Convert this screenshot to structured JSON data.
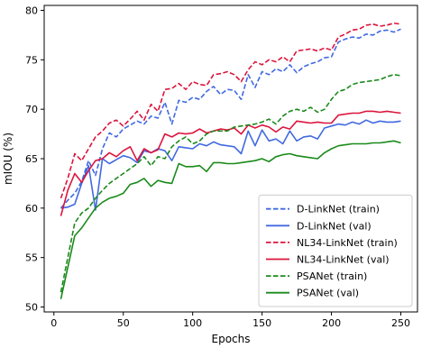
{
  "chart_data": {
    "type": "line",
    "xlabel": "Epochs",
    "ylabel": "mIOU (%)",
    "xlim": [
      -7,
      262
    ],
    "ylim": [
      49.5,
      80.5
    ],
    "xticks": [
      0,
      50,
      100,
      150,
      200,
      250
    ],
    "yticks": [
      50,
      55,
      60,
      65,
      70,
      75,
      80
    ],
    "grid": false,
    "legend_position": "lower-right",
    "x": [
      5,
      10,
      15,
      20,
      25,
      30,
      35,
      40,
      45,
      50,
      55,
      60,
      65,
      70,
      75,
      80,
      85,
      90,
      95,
      100,
      105,
      110,
      115,
      120,
      125,
      130,
      135,
      140,
      145,
      150,
      155,
      160,
      165,
      170,
      175,
      180,
      185,
      190,
      195,
      200,
      205,
      210,
      215,
      220,
      225,
      230,
      235,
      240,
      245,
      250
    ],
    "series": [
      {
        "name": "D-LinkNet (train)",
        "color": "#4169e1",
        "dash": true,
        "values": [
          60.0,
          60.8,
          61.5,
          62.7,
          64.8,
          63.3,
          66.0,
          67.6,
          67.2,
          68.0,
          68.4,
          68.8,
          68.5,
          69.3,
          69.1,
          70.7,
          68.5,
          70.9,
          70.7,
          71.2,
          71.0,
          71.8,
          72.3,
          71.5,
          72.0,
          71.9,
          71.0,
          73.5,
          72.2,
          73.8,
          73.5,
          74.1,
          73.8,
          74.5,
          73.7,
          74.3,
          74.6,
          74.8,
          75.2,
          75.3,
          76.8,
          77.1,
          77.3,
          77.2,
          77.6,
          77.5,
          77.9,
          78.0,
          77.8,
          78.1
        ]
      },
      {
        "name": "D-LinkNet (val)",
        "color": "#4169e1",
        "dash": false,
        "values": [
          60.0,
          60.1,
          60.4,
          62.5,
          64.3,
          59.8,
          65.0,
          64.5,
          64.9,
          65.3,
          65.1,
          64.6,
          65.8,
          65.6,
          66.0,
          65.8,
          64.8,
          66.2,
          66.1,
          66.0,
          66.5,
          66.3,
          66.7,
          66.4,
          66.3,
          66.2,
          65.5,
          67.8,
          66.3,
          67.9,
          66.8,
          67.0,
          66.5,
          67.8,
          66.8,
          67.2,
          67.3,
          67.0,
          68.1,
          68.3,
          68.5,
          68.4,
          68.7,
          68.5,
          68.9,
          68.6,
          68.8,
          68.7,
          68.7,
          68.8
        ]
      },
      {
        "name": "NL34-LinkNet (train)",
        "color": "#dc143c",
        "dash": true,
        "values": [
          61.0,
          63.0,
          65.5,
          64.8,
          66.0,
          67.2,
          67.8,
          68.6,
          68.9,
          68.3,
          69.0,
          69.8,
          68.9,
          70.5,
          69.8,
          72.0,
          72.1,
          72.6,
          72.0,
          72.8,
          72.5,
          72.4,
          73.5,
          73.6,
          73.8,
          73.5,
          72.8,
          74.0,
          74.8,
          74.5,
          75.0,
          74.8,
          75.3,
          74.8,
          75.9,
          76.0,
          76.1,
          75.9,
          76.2,
          76.0,
          77.3,
          77.6,
          78.0,
          78.1,
          78.5,
          78.6,
          78.4,
          78.5,
          78.7,
          78.6
        ]
      },
      {
        "name": "NL34-LinkNet (val)",
        "color": "#dc143c",
        "dash": false,
        "values": [
          59.2,
          61.8,
          63.5,
          62.6,
          63.8,
          64.8,
          65.0,
          65.6,
          65.2,
          65.8,
          66.2,
          64.8,
          66.0,
          65.6,
          65.9,
          67.5,
          67.2,
          67.6,
          67.5,
          67.6,
          68.0,
          67.6,
          67.8,
          68.0,
          67.9,
          68.1,
          67.5,
          68.4,
          68.1,
          68.4,
          68.2,
          67.7,
          68.2,
          68.0,
          68.8,
          68.7,
          68.6,
          68.7,
          68.6,
          68.6,
          69.4,
          69.5,
          69.6,
          69.6,
          69.8,
          69.8,
          69.7,
          69.8,
          69.7,
          69.6
        ]
      },
      {
        "name": "PSANet (train)",
        "color": "#1a8a1a",
        "dash": true,
        "values": [
          51.5,
          55.0,
          58.5,
          59.5,
          60.0,
          61.0,
          61.8,
          62.5,
          63.0,
          63.5,
          64.0,
          64.5,
          65.2,
          64.3,
          65.2,
          65.0,
          66.2,
          66.8,
          67.2,
          66.5,
          66.8,
          67.5,
          67.8,
          67.8,
          67.8,
          68.2,
          68.3,
          68.4,
          68.5,
          68.7,
          69.0,
          68.5,
          69.3,
          69.8,
          70.0,
          69.8,
          70.2,
          69.7,
          70.0,
          71.0,
          71.8,
          72.0,
          72.5,
          72.7,
          72.8,
          72.9,
          73.0,
          73.3,
          73.5,
          73.4
        ]
      },
      {
        "name": "PSANet (val)",
        "color": "#1a8a1a",
        "dash": false,
        "values": [
          50.8,
          54.0,
          57.2,
          58.0,
          59.0,
          60.0,
          60.6,
          61.0,
          61.2,
          61.5,
          62.4,
          62.6,
          63.0,
          62.2,
          62.8,
          62.6,
          62.5,
          64.5,
          64.2,
          64.2,
          64.3,
          63.7,
          64.6,
          64.6,
          64.5,
          64.5,
          64.6,
          64.7,
          64.8,
          65.0,
          64.7,
          65.2,
          65.4,
          65.5,
          65.3,
          65.2,
          65.1,
          65.0,
          65.6,
          66.0,
          66.3,
          66.4,
          66.5,
          66.5,
          66.5,
          66.6,
          66.6,
          66.7,
          66.8,
          66.6
        ]
      }
    ]
  }
}
